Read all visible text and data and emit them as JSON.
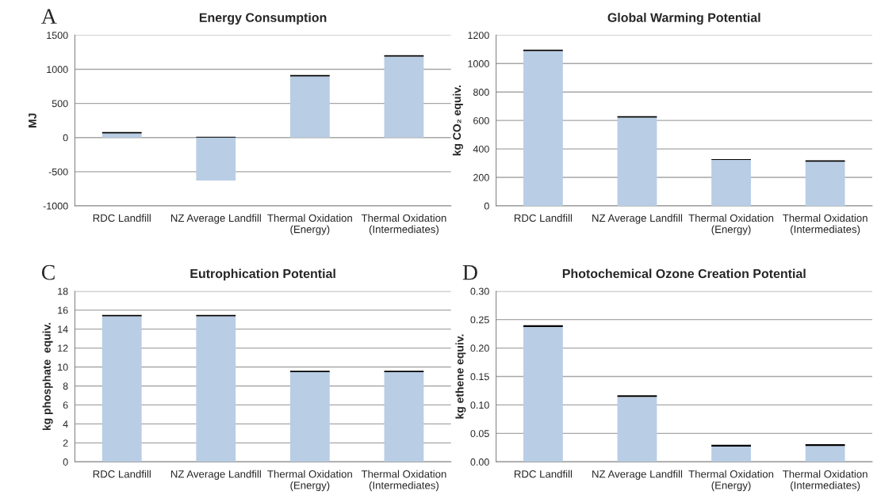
{
  "chart_data": [
    {
      "type": "bar",
      "title": "Energy Consumption",
      "ylabel": "MJ",
      "annotations": [
        "A"
      ],
      "categories": [
        "RDC Landfill",
        "NZ Average Landfill",
        "Thermal Oxidation\n(Energy)",
        "Thermal Oxidation\n(Intermediates)"
      ],
      "stacked": true,
      "grid": "y",
      "ylim": [
        -1000,
        1500
      ],
      "yticks": [
        -1000,
        -500,
        0,
        500,
        1000,
        1500
      ],
      "series": [
        {
          "color": "#b9cde5",
          "values": [
            60,
            -630,
            895,
            1185
          ]
        },
        {
          "color": "#000000",
          "values": [
            20,
            12,
            20,
            20
          ]
        }
      ]
    },
    {
      "type": "bar",
      "title": "Global Warming Potential",
      "ylabel": "kg CO₂ equiv.",
      "categories": [
        "RDC Landfill",
        "NZ Average Landfill",
        "Thermal Oxidation\n(Energy)",
        "Thermal Oxidation\n(Intermediates)"
      ],
      "stacked": true,
      "grid": "y",
      "ylim": [
        0,
        1200
      ],
      "yticks": [
        0,
        200,
        400,
        600,
        800,
        1000,
        1200
      ],
      "series": [
        {
          "color": "#b9cde5",
          "values": [
            1088,
            620,
            322,
            310
          ]
        },
        {
          "color": "#000000",
          "values": [
            10,
            10,
            6,
            10
          ]
        }
      ]
    },
    {
      "type": "bar",
      "title": "Eutrophication Potential",
      "ylabel": "kg phosphate  equiv.",
      "annotations": [
        "C"
      ],
      "categories": [
        "RDC Landfill",
        "NZ Average Landfill",
        "Thermal Oxidation\n(Energy)",
        "Thermal Oxidation\n(Intermediates)"
      ],
      "stacked": true,
      "grid": "y",
      "ylim": [
        0,
        18
      ],
      "yticks": [
        0,
        2,
        4,
        6,
        8,
        10,
        12,
        14,
        16,
        18
      ],
      "series": [
        {
          "color": "#b9cde5",
          "values": [
            15.35,
            15.35,
            9.45,
            9.45
          ]
        },
        {
          "color": "#000000",
          "values": [
            0.15,
            0.15,
            0.15,
            0.15
          ]
        }
      ]
    },
    {
      "type": "bar",
      "title": "Photochemical Ozone Creation Potential",
      "ylabel": "kg ethene equiv.",
      "annotations": [
        "D"
      ],
      "categories": [
        "RDC Landfill",
        "NZ Average Landfill",
        "Thermal Oxidation\n(Energy)",
        "Thermal Oxidation\n(Intermediates)"
      ],
      "stacked": true,
      "grid": "y",
      "ylim": [
        0,
        0.3
      ],
      "yticks": [
        {
          "value": 0,
          "label": "0.00"
        },
        {
          "value": 0.05,
          "label": "0.05"
        },
        {
          "value": 0.1,
          "label": "0.10"
        },
        {
          "value": 0.15,
          "label": "0.15"
        },
        {
          "value": 0.2,
          "label": "0.20"
        },
        {
          "value": 0.25,
          "label": "0.25"
        },
        {
          "value": 0.3,
          "label": "0.30"
        }
      ],
      "series": [
        {
          "color": "#b9cde5",
          "values": [
            0.237,
            0.114,
            0.027,
            0.028
          ]
        },
        {
          "color": "#000000",
          "values": [
            0.003,
            0.003,
            0.003,
            0.003
          ]
        }
      ]
    }
  ]
}
